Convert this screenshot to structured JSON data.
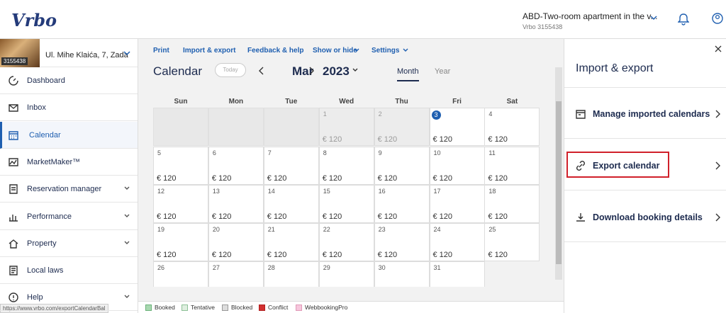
{
  "header": {
    "logo": "Vrbo",
    "property_title": "ABD-Two-room apartment in the v...",
    "property_id": "Vrbo 3155438"
  },
  "sidebar": {
    "property_badge": "3155438",
    "property_address": "Ul. Mihe Klaića, 7, Zada",
    "nav": [
      "Dashboard",
      "Inbox",
      "Calendar",
      "MarketMaker™",
      "Reservation manager",
      "Performance",
      "Property",
      "Local laws",
      "Help"
    ]
  },
  "toolbar": [
    "Print",
    "Import & export",
    "Feedback & help",
    "Show or hide",
    "Settings"
  ],
  "calendar": {
    "title": "Calendar",
    "today": "Today",
    "month": "Mar",
    "year": "2023",
    "views": [
      "Month",
      "Year"
    ],
    "weekdays": [
      "Sun",
      "Mon",
      "Tue",
      "Wed",
      "Thu",
      "Fri",
      "Sat"
    ],
    "days": [
      {
        "day": 1,
        "price": "€ 120"
      },
      {
        "day": 2,
        "price": "€ 120"
      },
      {
        "day": 3,
        "price": "€ 120"
      },
      {
        "day": 4,
        "price": "€ 120"
      },
      {
        "day": 5,
        "price": "€ 120"
      },
      {
        "day": 6,
        "price": "€ 120"
      },
      {
        "day": 7,
        "price": "€ 120"
      },
      {
        "day": 8,
        "price": "€ 120"
      },
      {
        "day": 9,
        "price": "€ 120"
      },
      {
        "day": 10,
        "price": "€ 120"
      },
      {
        "day": 11,
        "price": "€ 120"
      },
      {
        "day": 12,
        "price": "€ 120"
      },
      {
        "day": 13,
        "price": "€ 120"
      },
      {
        "day": 14,
        "price": "€ 120"
      },
      {
        "day": 15,
        "price": "€ 120"
      },
      {
        "day": 16,
        "price": "€ 120"
      },
      {
        "day": 17,
        "price": "€ 120"
      },
      {
        "day": 18,
        "price": "€ 120"
      },
      {
        "day": 19,
        "price": "€ 120"
      },
      {
        "day": 20,
        "price": "€ 120"
      },
      {
        "day": 21,
        "price": "€ 120"
      },
      {
        "day": 22,
        "price": "€ 120"
      },
      {
        "day": 23,
        "price": "€ 120"
      },
      {
        "day": 24,
        "price": "€ 120"
      },
      {
        "day": 25,
        "price": "€ 120"
      },
      {
        "day": 26
      },
      {
        "day": 27
      },
      {
        "day": 28
      },
      {
        "day": 29
      },
      {
        "day": 30
      },
      {
        "day": 31
      }
    ]
  },
  "legend": [
    "Booked",
    "Tentative",
    "Blocked",
    "Conflict",
    "WebbookingPro"
  ],
  "panel": {
    "title": "Import & export",
    "items": [
      "Manage imported calendars",
      "Export calendar",
      "Download booking details"
    ]
  },
  "status_url": "https://www.vrbo.com/exportCalendarBal"
}
